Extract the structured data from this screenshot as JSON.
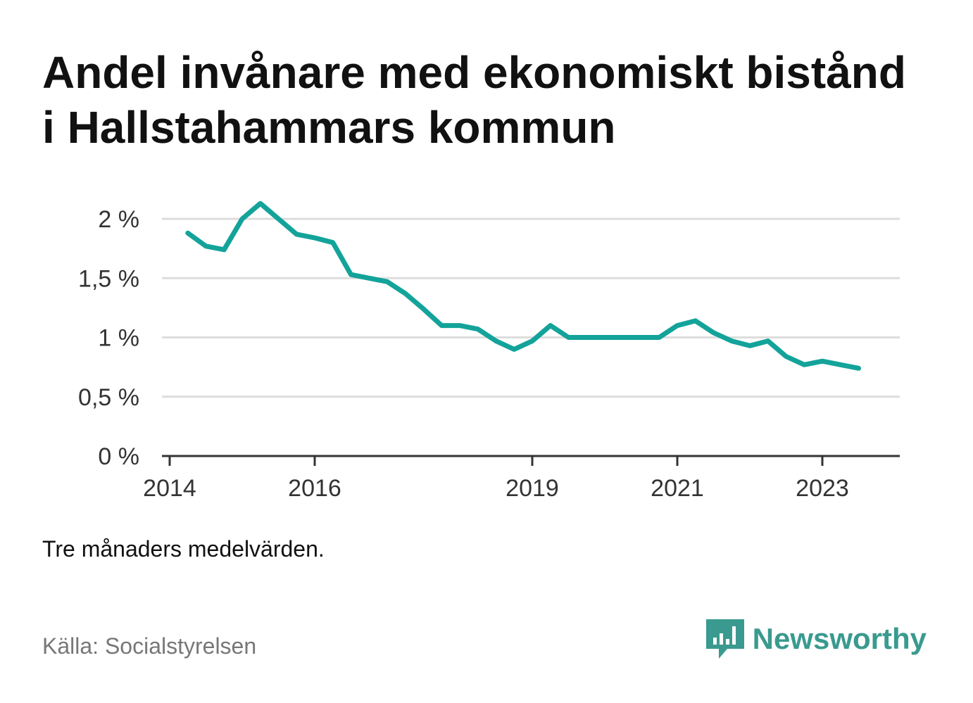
{
  "title": "Andel invånare med ekonomiskt bistånd i Hallstahammars kommun",
  "note": "Tre månaders medelvärden.",
  "source": "Källa: Socialstyrelsen",
  "brand": {
    "name": "Newsworthy",
    "icon": "bar-chart-speech-bubble-icon",
    "color": "#3a9a8f"
  },
  "colors": {
    "line": "#13a39a",
    "grid": "#dddddd",
    "axis": "#333333"
  },
  "chart_data": {
    "type": "line",
    "title": "Andel invånare med ekonomiskt bistånd i Hallstahammars kommun",
    "xlabel": "",
    "ylabel": "",
    "x_ticks": [
      "2014",
      "2016",
      "2019",
      "2021",
      "2023"
    ],
    "y_ticks": [
      "0 %",
      "0,5 %",
      "1 %",
      "1,5 %",
      "2 %"
    ],
    "ylim": [
      0,
      2.2
    ],
    "xlim": [
      "2014-01",
      "2024-01"
    ],
    "grid": true,
    "legend": "none",
    "series": [
      {
        "x": [
          "2014-04",
          "2014-07",
          "2014-10",
          "2015-01",
          "2015-04",
          "2015-07",
          "2015-10",
          "2016-01",
          "2016-04",
          "2016-07",
          "2016-10",
          "2017-01",
          "2017-04",
          "2017-07",
          "2017-10",
          "2018-01",
          "2018-04",
          "2018-07",
          "2018-10",
          "2019-01",
          "2019-04",
          "2019-07",
          "2019-10",
          "2020-01",
          "2020-04",
          "2020-07",
          "2020-10",
          "2021-01",
          "2021-04",
          "2021-07",
          "2021-10",
          "2022-01",
          "2022-04",
          "2022-07",
          "2022-10",
          "2023-01",
          "2023-04",
          "2023-07",
          "2023-10"
        ],
        "values": [
          1.88,
          1.77,
          1.74,
          2.0,
          2.13,
          2.0,
          1.87,
          1.84,
          1.8,
          1.53,
          1.5,
          1.47,
          1.37,
          1.24,
          1.1,
          1.1,
          1.07,
          0.97,
          0.9,
          0.97,
          1.1,
          1.0,
          1.0,
          1.0,
          1.0,
          1.0,
          1.0,
          1.1,
          1.14,
          1.04,
          0.97,
          0.93,
          0.97,
          0.84,
          0.77,
          0.8,
          0.77,
          0.74,
          null
        ]
      }
    ]
  }
}
